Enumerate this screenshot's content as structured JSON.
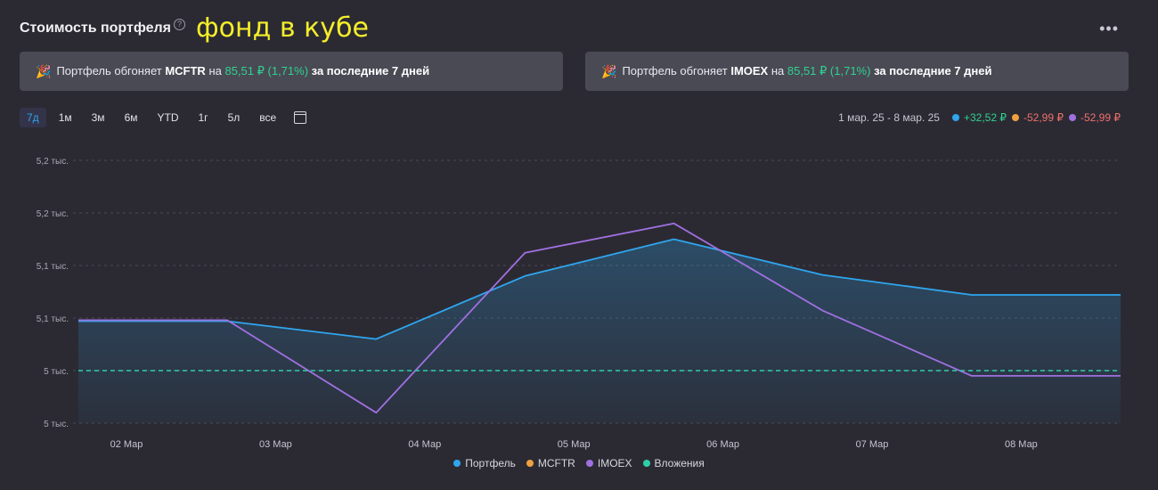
{
  "header": {
    "title": "Стоимость портфеля",
    "help": "?",
    "overlay_note": "фонд в кубе",
    "menu": "•••"
  },
  "banners": [
    {
      "text_before": "Портфель обгоняет ",
      "index": "MCFTR",
      "text_mid": " на ",
      "amount": "85,51 ₽",
      "pct": "(1,71%)",
      "text_after": " за последние 7 дней"
    },
    {
      "text_before": "Портфель обгоняет ",
      "index": "IMOEX",
      "text_mid": " на ",
      "amount": "85,51 ₽",
      "pct": "(1,71%)",
      "text_after": " за последние 7 дней"
    }
  ],
  "periods": [
    "7д",
    "1м",
    "3м",
    "6м",
    "YTD",
    "1г",
    "5л",
    "все"
  ],
  "summary": {
    "range": "1 мар. 25 - 8 мар. 25",
    "items": [
      {
        "value": "+32,52 ₽",
        "color": "#2fa6ee",
        "sign": "pos"
      },
      {
        "value": "-52,99 ₽",
        "color": "#f0a040",
        "sign": "neg"
      },
      {
        "value": "-52,99 ₽",
        "color": "#a070e0",
        "sign": "neg"
      }
    ]
  },
  "legend": [
    {
      "label": "Портфель",
      "color": "#2fa6ee"
    },
    {
      "label": "MCFTR",
      "color": "#f0a040"
    },
    {
      "label": "IMOEX",
      "color": "#a070e0"
    },
    {
      "label": "Вложения",
      "color": "#2ecfa8"
    }
  ],
  "chart_data": {
    "type": "line",
    "x": [
      "02 Мар",
      "03 Мар",
      "04 Мар",
      "05 Мар",
      "06 Мар",
      "07 Мар",
      "08 Мар"
    ],
    "y_ticks": [
      "5,2 тыс.",
      "5,2 тыс.",
      "5,1 тыс.",
      "5,1 тыс.",
      "5 тыс.",
      "5 тыс."
    ],
    "y_tick_values": [
      5250,
      5200,
      5150,
      5100,
      5050,
      5000
    ],
    "ylim": [
      5000,
      5260
    ],
    "series": [
      {
        "name": "Портфель",
        "color": "#2fa6ee",
        "area": true,
        "points": [
          [
            1.0,
            5097
          ],
          [
            2.0,
            5097
          ],
          [
            3.0,
            5080
          ],
          [
            4.0,
            5140
          ],
          [
            5.0,
            5175
          ],
          [
            6.0,
            5141
          ],
          [
            7.0,
            5122
          ],
          [
            8.0,
            5122
          ]
        ]
      },
      {
        "name": "IMOEX",
        "color": "#a070e0",
        "area": false,
        "points": [
          [
            1.0,
            5098
          ],
          [
            2.0,
            5098
          ],
          [
            3.0,
            5010
          ],
          [
            4.0,
            5162
          ],
          [
            5.0,
            5190
          ],
          [
            6.0,
            5107
          ],
          [
            7.0,
            5045
          ],
          [
            8.0,
            5045
          ]
        ]
      },
      {
        "name": "Вложения",
        "color": "#2ecfa8",
        "dashed": true,
        "area": false,
        "points": [
          [
            1.0,
            5050
          ],
          [
            8.0,
            5050
          ]
        ]
      }
    ],
    "grid": true,
    "legend_position": "bottom"
  }
}
